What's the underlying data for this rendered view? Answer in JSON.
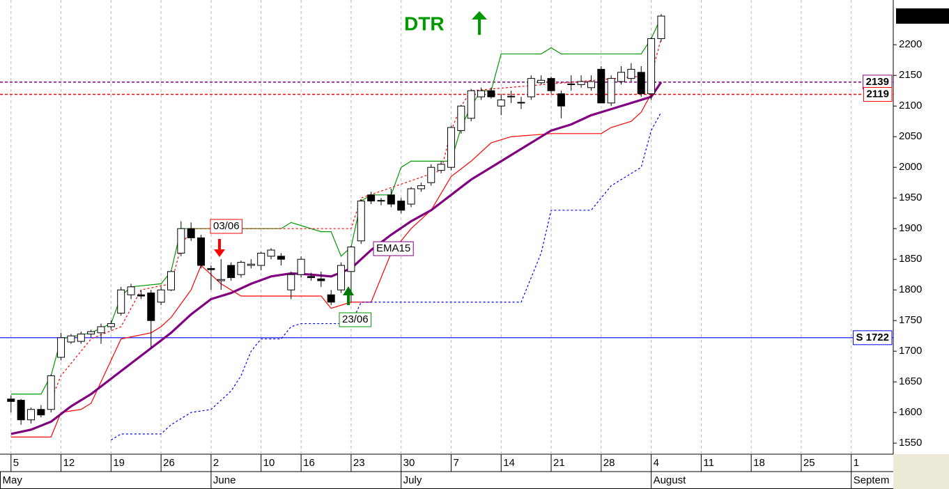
{
  "chart_data": {
    "type": "candlestick",
    "title": "DTR",
    "x": [
      0,
      1,
      2,
      3,
      4,
      5,
      6,
      7,
      8,
      9,
      10,
      11,
      12,
      13,
      14,
      15,
      16,
      17,
      18,
      19,
      20,
      21,
      22,
      23,
      24,
      25,
      26,
      27,
      28,
      29,
      30,
      31,
      32,
      33,
      34,
      35,
      36,
      37,
      38,
      39,
      40,
      41,
      42,
      43,
      44,
      45,
      46,
      47,
      48,
      49,
      50,
      51,
      52,
      53,
      54,
      55,
      56,
      57,
      58,
      59,
      60,
      61,
      62,
      63,
      64,
      65
    ],
    "open": [
      1622,
      1620,
      1588,
      1605,
      1605,
      1690,
      1715,
      1716,
      1728,
      1730,
      1740,
      1762,
      1792,
      1792,
      1795,
      1780,
      1800,
      1860,
      1900,
      1885,
      1835,
      1815,
      1840,
      1825,
      1840,
      1840,
      1855,
      1855,
      1800,
      1825,
      1822,
      1818,
      1792,
      1800,
      1830,
      1880,
      1955,
      1945,
      1955,
      1945,
      1940,
      1965,
      1975,
      1995,
      2000,
      2060,
      2080,
      2115,
      2125,
      2100,
      2115,
      2105,
      2115,
      2138,
      2145,
      2120,
      2135,
      2135,
      2130,
      2160,
      2105,
      2140,
      2145,
      2155,
      2120,
      2210
    ],
    "high": [
      1628,
      1622,
      1608,
      1612,
      1662,
      1730,
      1728,
      1732,
      1735,
      1745,
      1750,
      1805,
      1810,
      1800,
      1800,
      1805,
      1832,
      1912,
      1910,
      1890,
      1840,
      1850,
      1845,
      1848,
      1850,
      1862,
      1868,
      1860,
      1830,
      1855,
      1828,
      1830,
      1800,
      1845,
      1872,
      1948,
      1960,
      1950,
      1965,
      1950,
      1968,
      1975,
      2005,
      2010,
      2068,
      2102,
      2128,
      2130,
      2130,
      2120,
      2125,
      2115,
      2150,
      2150,
      2148,
      2125,
      2150,
      2150,
      2150,
      2165,
      2150,
      2165,
      2170,
      2165,
      2212,
      2250
    ],
    "low": [
      1600,
      1580,
      1582,
      1592,
      1600,
      1685,
      1712,
      1712,
      1722,
      1712,
      1735,
      1758,
      1785,
      1785,
      1705,
      1775,
      1798,
      1855,
      1880,
      1835,
      1800,
      1800,
      1815,
      1820,
      1835,
      1832,
      1850,
      1840,
      1785,
      1820,
      1815,
      1805,
      1775,
      1795,
      1780,
      1875,
      1940,
      1938,
      1935,
      1925,
      1935,
      1960,
      1970,
      1990,
      1995,
      2055,
      2075,
      2110,
      2112,
      2085,
      2105,
      2095,
      2110,
      2135,
      2120,
      2080,
      2125,
      2130,
      2125,
      2105,
      2100,
      2135,
      2140,
      2115,
      2110,
      2205
    ],
    "close": [
      1618,
      1588,
      1605,
      1596,
      1660,
      1722,
      1725,
      1728,
      1732,
      1740,
      1745,
      1800,
      1805,
      1790,
      1750,
      1800,
      1830,
      1900,
      1885,
      1840,
      1833,
      1817,
      1820,
      1845,
      1842,
      1860,
      1865,
      1850,
      1825,
      1850,
      1820,
      1815,
      1780,
      1840,
      1870,
      1945,
      1945,
      1946,
      1940,
      1930,
      1965,
      1970,
      2000,
      2005,
      2065,
      2100,
      2125,
      2125,
      2115,
      2110,
      2116,
      2106,
      2145,
      2142,
      2125,
      2100,
      2136,
      2140,
      2140,
      2105,
      2145,
      2155,
      2160,
      2120,
      2210,
      2246.78
    ],
    "up_color": "#ffffff",
    "down_color": "#000000",
    "overlays": [
      {
        "color": "#009900",
        "width": 1.2,
        "dash": false,
        "x": [
          0,
          3,
          4,
          5,
          8,
          10,
          11,
          12,
          15,
          16,
          17,
          27,
          28,
          31,
          32,
          33,
          34,
          35,
          36,
          38,
          39,
          40,
          44,
          45,
          46,
          47,
          48,
          49,
          53,
          54,
          55,
          63,
          64,
          65
        ],
        "values": [
          1630,
          1630,
          1660,
          1720,
          1730,
          1745,
          1790,
          1805,
          1810,
          1830,
          1900,
          1900,
          1910,
          1895,
          1895,
          1855,
          1870,
          1945,
          1955,
          1955,
          2000,
          2010,
          2010,
          2065,
          2100,
          2125,
          2125,
          2185,
          2185,
          2195,
          2185,
          2185,
          2210,
          2245
        ]
      },
      {
        "color": "#ff0000",
        "width": 1.2,
        "dash": false,
        "x": [
          0,
          4,
          5,
          7,
          8,
          9,
          11,
          14,
          15,
          16,
          18,
          19,
          21,
          23,
          27,
          31,
          32,
          34,
          36,
          38,
          40,
          42,
          44,
          46,
          48,
          50,
          54,
          59,
          60,
          62,
          63,
          64
        ],
        "values": [
          1560,
          1560,
          1600,
          1605,
          1615,
          1650,
          1720,
          1730,
          1740,
          1755,
          1800,
          1840,
          1810,
          1790,
          1790,
          1790,
          1770,
          1780,
          1780,
          1860,
          1900,
          1930,
          1985,
          2010,
          2040,
          2050,
          2055,
          2055,
          2065,
          2075,
          2090,
          2120
        ]
      },
      {
        "color": "#0000ff",
        "width": 1.2,
        "dash": true,
        "x": [
          10,
          11,
          15,
          16,
          18,
          20,
          21,
          22,
          23,
          24,
          25,
          27,
          28,
          29,
          34,
          35,
          51,
          53,
          54,
          58,
          60,
          62,
          63,
          64,
          65
        ],
        "values": [
          1555,
          1565,
          1565,
          1580,
          1600,
          1605,
          1620,
          1635,
          1660,
          1700,
          1720,
          1720,
          1740,
          1745,
          1745,
          1780,
          1780,
          1860,
          1930,
          1930,
          1970,
          1990,
          2000,
          2060,
          2090
        ]
      },
      {
        "color": "#ff0000",
        "width": 1.2,
        "dash": true,
        "x": [
          4,
          5,
          8,
          11,
          13,
          16,
          17,
          18,
          34,
          35,
          43,
          44,
          45,
          46,
          64,
          65
        ],
        "values": [
          1620,
          1660,
          1720,
          1740,
          1800,
          1810,
          1870,
          1900,
          1900,
          1950,
          1995,
          2060,
          2100,
          2125,
          2150,
          2210
        ]
      },
      {
        "name": "EMA15",
        "color": "#800080",
        "width": 3.2,
        "dash": false,
        "x": [
          0,
          2,
          4,
          6,
          8,
          10,
          12,
          14,
          16,
          18,
          20,
          22,
          24,
          26,
          28,
          30,
          32,
          34,
          36,
          38,
          40,
          42,
          44,
          46,
          48,
          50,
          52,
          54,
          56,
          58,
          60,
          62,
          64,
          65
        ],
        "values": [
          1565,
          1572,
          1585,
          1610,
          1630,
          1655,
          1680,
          1705,
          1730,
          1760,
          1785,
          1795,
          1810,
          1822,
          1827,
          1825,
          1822,
          1835,
          1865,
          1890,
          1912,
          1930,
          1955,
          1980,
          2000,
          2020,
          2040,
          2060,
          2070,
          2085,
          2095,
          2105,
          2115,
          2139
        ]
      }
    ],
    "levels": [
      {
        "value": 2139,
        "color": "#800080",
        "dash": true
      },
      {
        "value": 2119,
        "color": "#ff0000",
        "dash": true
      },
      {
        "value": 1722,
        "label": "S 1722",
        "color": "#0000ff",
        "dash": false
      }
    ],
    "annotations": [
      {
        "text": "03/06",
        "color": "#ff0000"
      },
      {
        "text": "23/06",
        "color": "#009900"
      }
    ],
    "title_color": "#009900",
    "xlim": [
      -1.1,
      88.2
    ],
    "ylim": [
      1532,
      2273
    ],
    "yticks": [
      1550,
      1600,
      1650,
      1700,
      1750,
      1800,
      1850,
      1900,
      1950,
      2000,
      2050,
      2100,
      2150,
      2200
    ],
    "xticks": [
      {
        "value": 0,
        "label": "5"
      },
      {
        "value": 5,
        "label": "12"
      },
      {
        "value": 10,
        "label": "19"
      },
      {
        "value": 15,
        "label": "26"
      },
      {
        "value": 20,
        "label": "2"
      },
      {
        "value": 25,
        "label": "10"
      },
      {
        "value": 29,
        "label": "16"
      },
      {
        "value": 34,
        "label": "23"
      },
      {
        "value": 39,
        "label": "30"
      },
      {
        "value": 44,
        "label": "7"
      },
      {
        "value": 49,
        "label": "14"
      },
      {
        "value": 54,
        "label": "21"
      },
      {
        "value": 59,
        "label": "28"
      },
      {
        "value": 64,
        "label": "4"
      },
      {
        "value": 69,
        "label": "11"
      },
      {
        "value": 74,
        "label": "18"
      },
      {
        "value": 79,
        "label": "25"
      },
      {
        "value": 84,
        "label": "1"
      }
    ],
    "months": [
      {
        "value": -2,
        "label": "May"
      },
      {
        "value": 20,
        "label": "June"
      },
      {
        "value": 39,
        "label": "July"
      },
      {
        "value": 64,
        "label": "August"
      },
      {
        "value": 84,
        "label": "Septem"
      }
    ],
    "grid": true
  }
}
